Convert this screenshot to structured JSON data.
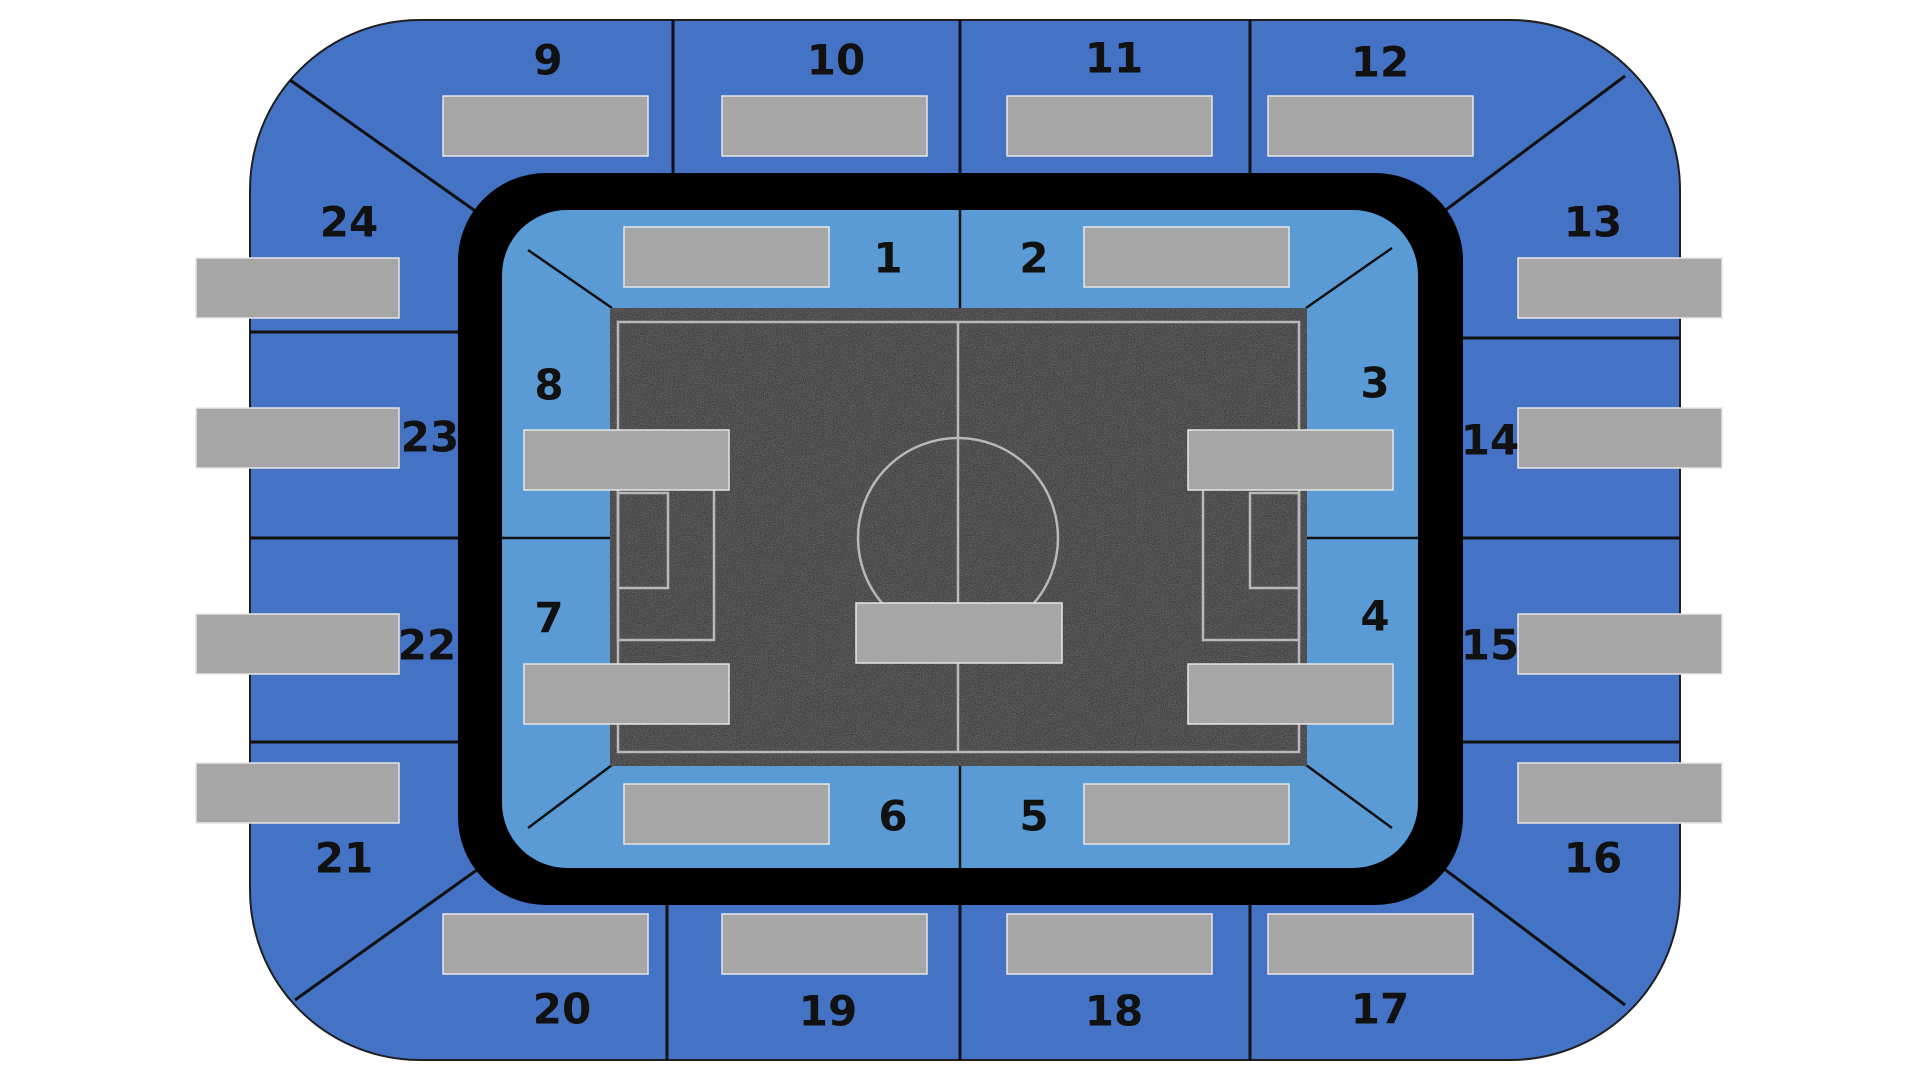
{
  "colors": {
    "outer_ring": "#4472c4",
    "inner_ring": "#5b9bd5",
    "concourse": "#000000",
    "pitch": "#262626",
    "pitch_lines": "#b8b8b8",
    "placeholder": "#a6a6a6",
    "section_label": "#111111"
  },
  "sections": {
    "s1": "1",
    "s2": "2",
    "s3": "3",
    "s4": "4",
    "s5": "5",
    "s6": "6",
    "s7": "7",
    "s8": "8",
    "s9": "9",
    "s10": "10",
    "s11": "11",
    "s12": "12",
    "s13": "13",
    "s14": "14",
    "s15": "15",
    "s16": "16",
    "s17": "17",
    "s18": "18",
    "s19": "19",
    "s20": "20",
    "s21": "21",
    "s22": "22",
    "s23": "23",
    "s24": "24"
  }
}
